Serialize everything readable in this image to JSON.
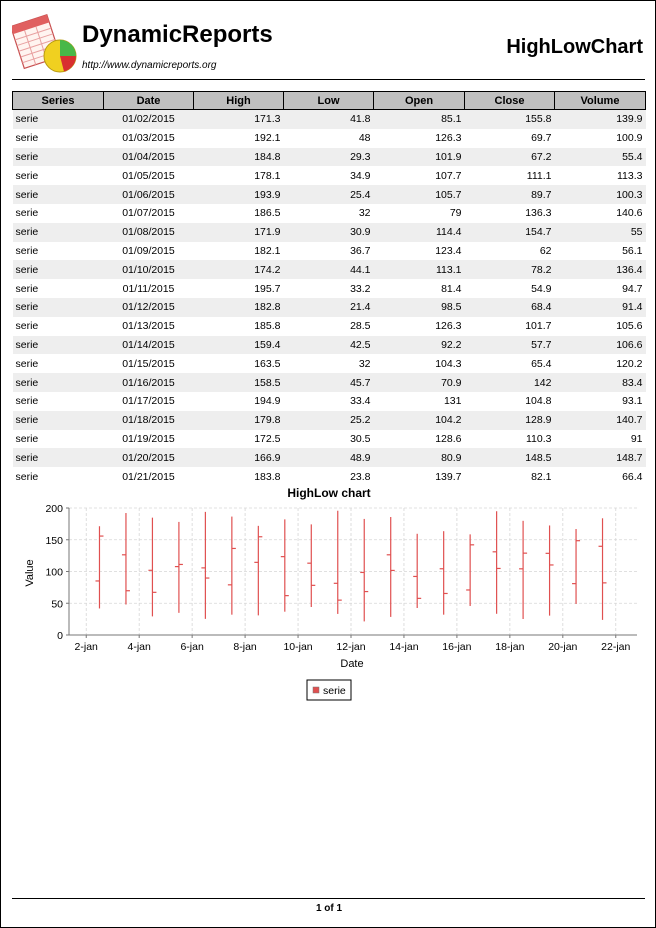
{
  "header": {
    "brand": "DynamicReports",
    "url": "http://www.dynamicreports.org",
    "report_title": "HighLowChart"
  },
  "table": {
    "columns": [
      "Series",
      "Date",
      "High",
      "Low",
      "Open",
      "Close",
      "Volume"
    ],
    "rows": [
      [
        "serie",
        "01/02/2015",
        "171.3",
        "41.8",
        "85.1",
        "155.8",
        "139.9"
      ],
      [
        "serie",
        "01/03/2015",
        "192.1",
        "48",
        "126.3",
        "69.7",
        "100.9"
      ],
      [
        "serie",
        "01/04/2015",
        "184.8",
        "29.3",
        "101.9",
        "67.2",
        "55.4"
      ],
      [
        "serie",
        "01/05/2015",
        "178.1",
        "34.9",
        "107.7",
        "111.1",
        "113.3"
      ],
      [
        "serie",
        "01/06/2015",
        "193.9",
        "25.4",
        "105.7",
        "89.7",
        "100.3"
      ],
      [
        "serie",
        "01/07/2015",
        "186.5",
        "32",
        "79",
        "136.3",
        "140.6"
      ],
      [
        "serie",
        "01/08/2015",
        "171.9",
        "30.9",
        "114.4",
        "154.7",
        "55"
      ],
      [
        "serie",
        "01/09/2015",
        "182.1",
        "36.7",
        "123.4",
        "62",
        "56.1"
      ],
      [
        "serie",
        "01/10/2015",
        "174.2",
        "44.1",
        "113.1",
        "78.2",
        "136.4"
      ],
      [
        "serie",
        "01/11/2015",
        "195.7",
        "33.2",
        "81.4",
        "54.9",
        "94.7"
      ],
      [
        "serie",
        "01/12/2015",
        "182.8",
        "21.4",
        "98.5",
        "68.4",
        "91.4"
      ],
      [
        "serie",
        "01/13/2015",
        "185.8",
        "28.5",
        "126.3",
        "101.7",
        "105.6"
      ],
      [
        "serie",
        "01/14/2015",
        "159.4",
        "42.5",
        "92.2",
        "57.7",
        "106.6"
      ],
      [
        "serie",
        "01/15/2015",
        "163.5",
        "32",
        "104.3",
        "65.4",
        "120.2"
      ],
      [
        "serie",
        "01/16/2015",
        "158.5",
        "45.7",
        "70.9",
        "142",
        "83.4"
      ],
      [
        "serie",
        "01/17/2015",
        "194.9",
        "33.4",
        "131",
        "104.8",
        "93.1"
      ],
      [
        "serie",
        "01/18/2015",
        "179.8",
        "25.2",
        "104.2",
        "128.9",
        "140.7"
      ],
      [
        "serie",
        "01/19/2015",
        "172.5",
        "30.5",
        "128.6",
        "110.3",
        "91"
      ],
      [
        "serie",
        "01/20/2015",
        "166.9",
        "48.9",
        "80.9",
        "148.5",
        "148.7"
      ],
      [
        "serie",
        "01/21/2015",
        "183.8",
        "23.8",
        "139.7",
        "82.1",
        "66.4"
      ]
    ]
  },
  "chart_data": {
    "type": "highlow",
    "title": "HighLow chart",
    "xlabel": "Date",
    "ylabel": "Value",
    "ylim": [
      0,
      200
    ],
    "yticks": [
      0,
      50,
      100,
      150,
      200
    ],
    "x_tick_labels": [
      "2-jan",
      "4-jan",
      "6-jan",
      "8-jan",
      "10-jan",
      "12-jan",
      "14-jan",
      "16-jan",
      "18-jan",
      "20-jan",
      "22-jan"
    ],
    "grid": true,
    "legend_position": "bottom",
    "color": "#e05050",
    "series": [
      {
        "name": "serie",
        "x": [
          "2015-01-02",
          "2015-01-03",
          "2015-01-04",
          "2015-01-05",
          "2015-01-06",
          "2015-01-07",
          "2015-01-08",
          "2015-01-09",
          "2015-01-10",
          "2015-01-11",
          "2015-01-12",
          "2015-01-13",
          "2015-01-14",
          "2015-01-15",
          "2015-01-16",
          "2015-01-17",
          "2015-01-18",
          "2015-01-19",
          "2015-01-20",
          "2015-01-21"
        ],
        "high": [
          171.3,
          192.1,
          184.8,
          178.1,
          193.9,
          186.5,
          171.9,
          182.1,
          174.2,
          195.7,
          182.8,
          185.8,
          159.4,
          163.5,
          158.5,
          194.9,
          179.8,
          172.5,
          166.9,
          183.8
        ],
        "low": [
          41.8,
          48,
          29.3,
          34.9,
          25.4,
          32,
          30.9,
          36.7,
          44.1,
          33.2,
          21.4,
          28.5,
          42.5,
          32,
          45.7,
          33.4,
          25.2,
          30.5,
          48.9,
          23.8
        ],
        "open": [
          85.1,
          126.3,
          101.9,
          107.7,
          105.7,
          79,
          114.4,
          123.4,
          113.1,
          81.4,
          98.5,
          126.3,
          92.2,
          104.3,
          70.9,
          131,
          104.2,
          128.6,
          80.9,
          139.7
        ],
        "close": [
          155.8,
          69.7,
          67.2,
          111.1,
          89.7,
          136.3,
          154.7,
          62,
          78.2,
          54.9,
          68.4,
          101.7,
          57.7,
          65.4,
          142,
          104.8,
          128.9,
          110.3,
          148.5,
          82.1
        ]
      }
    ]
  },
  "footer": {
    "page": "1 of 1"
  }
}
